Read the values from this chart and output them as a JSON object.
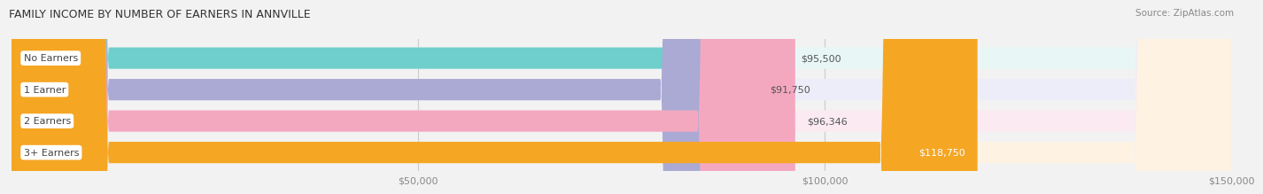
{
  "title": "FAMILY INCOME BY NUMBER OF EARNERS IN ANNVILLE",
  "source": "Source: ZipAtlas.com",
  "categories": [
    "No Earners",
    "1 Earner",
    "2 Earners",
    "3+ Earners"
  ],
  "values": [
    95500,
    91750,
    96346,
    118750
  ],
  "labels": [
    "$95,500",
    "$91,750",
    "$96,346",
    "$118,750"
  ],
  "bar_colors": [
    "#6ECFCC",
    "#AAAAD4",
    "#F4A8C0",
    "#F5A623"
  ],
  "bar_bg_colors": [
    "#E8F6F6",
    "#ECEDF8",
    "#FBEAF1",
    "#FEF3E2"
  ],
  "label_colors": [
    "#555555",
    "#555555",
    "#555555",
    "#ffffff"
  ],
  "xlim_min": 0,
  "xlim_max": 150000,
  "xticks": [
    50000,
    100000,
    150000
  ],
  "xtick_labels": [
    "$50,000",
    "$100,000",
    "$150,000"
  ],
  "bar_height": 0.68,
  "bg_color": "#f2f2f2",
  "grid_color": "#cccccc",
  "title_color": "#333333",
  "source_color": "#888888",
  "label_text_color": "#444444"
}
